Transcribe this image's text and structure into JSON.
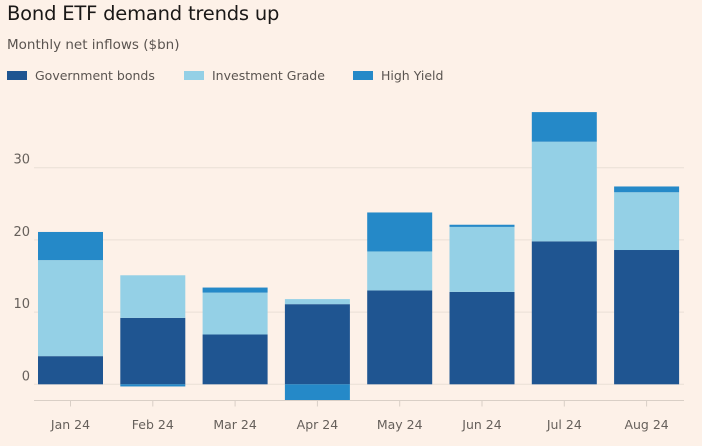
{
  "chart_data": {
    "type": "bar",
    "stacked": true,
    "title": "Bond ETF demand trends up",
    "subtitle": "Monthly net inflows ($bn)",
    "xlabel": "",
    "ylabel": "",
    "categories": [
      "Jan 24",
      "Feb 24",
      "Mar 24",
      "Apr 24",
      "May 24",
      "Jun 24",
      "Jul 24",
      "Aug 24"
    ],
    "series": [
      {
        "name": "Government bonds",
        "color": "#1f5591",
        "values": [
          3.9,
          9.2,
          6.9,
          11.1,
          13.0,
          12.8,
          19.8,
          18.6
        ]
      },
      {
        "name": "Investment Grade",
        "color": "#94d0e6",
        "values": [
          13.3,
          5.9,
          5.8,
          0.7,
          5.4,
          9.0,
          13.8,
          8.0
        ]
      },
      {
        "name": "High Yield",
        "color": "#2589c8",
        "values": [
          3.9,
          -0.3,
          0.7,
          -2.3,
          5.4,
          0.3,
          4.1,
          0.8
        ]
      }
    ],
    "ylim": [
      -2.3,
      37.7
    ],
    "yticks": [
      0,
      10,
      20,
      30
    ],
    "ytick_labels": [
      "0",
      "10",
      "20",
      "30"
    ],
    "grid": true,
    "legend": "top-left"
  },
  "colors": {
    "background": "#fdf1e8",
    "gridline": "#eadfd6",
    "axis": "#d9cfc6"
  }
}
